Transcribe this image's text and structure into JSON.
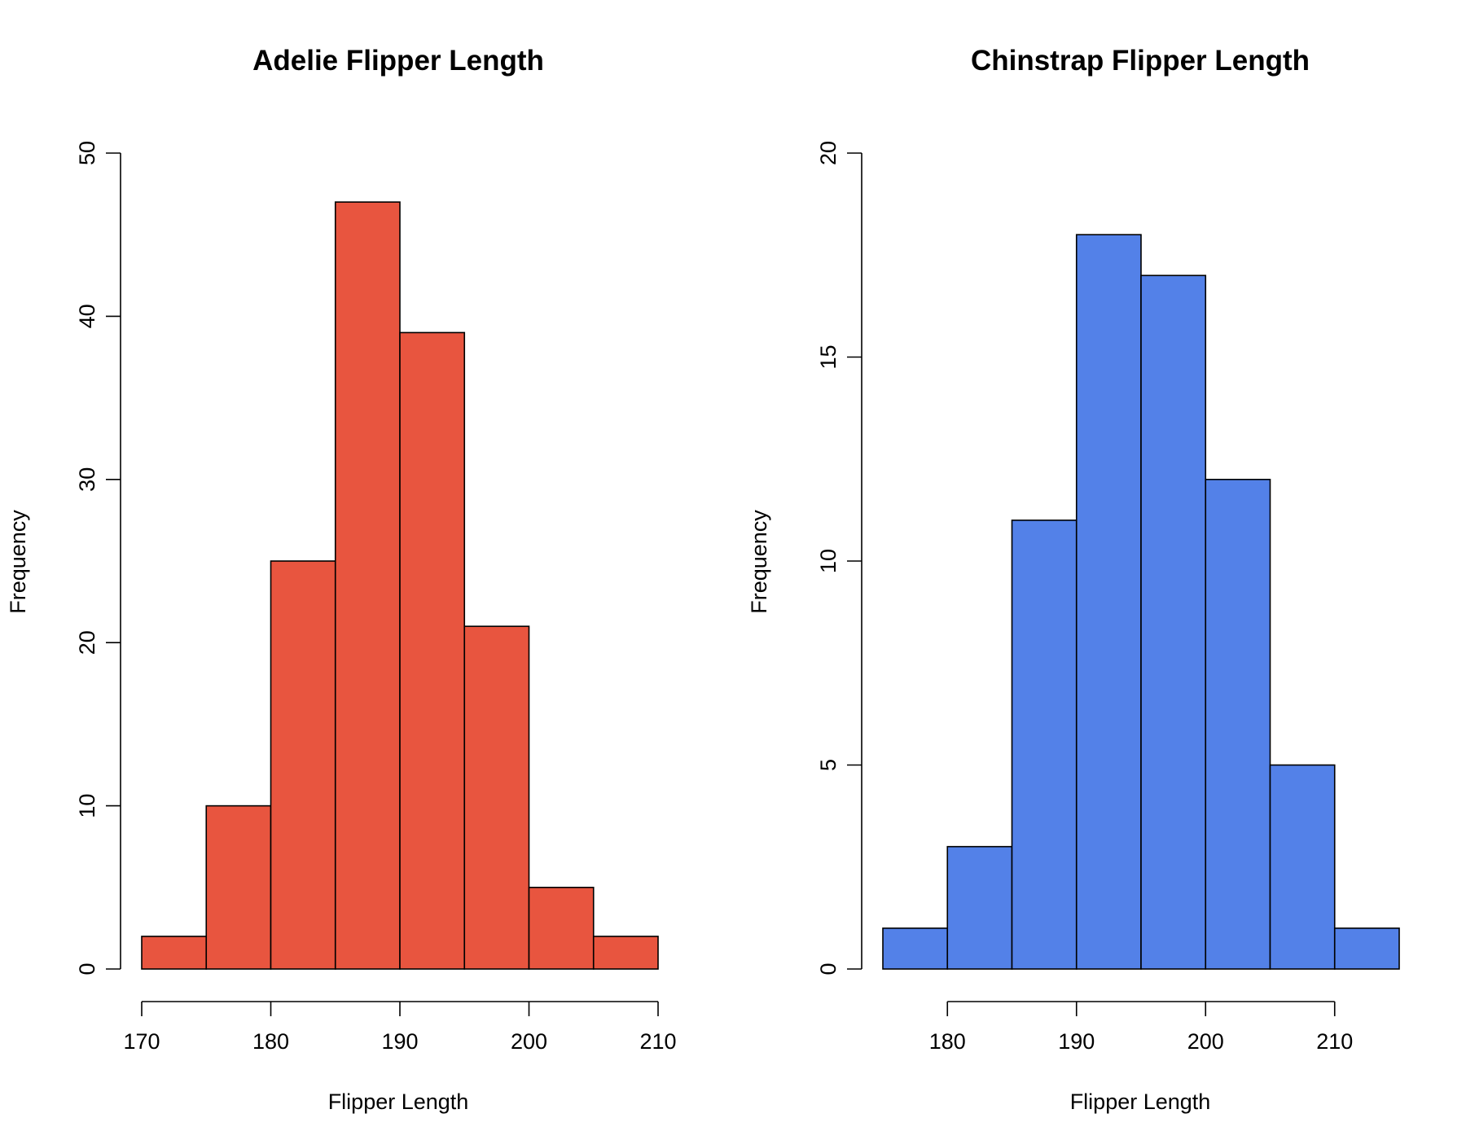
{
  "chart_data": [
    {
      "type": "bar",
      "title": "Adelie Flipper Length",
      "xlabel": "Flipper Length",
      "ylabel": "Frequency",
      "bin_edges": [
        170,
        175,
        180,
        185,
        190,
        195,
        200,
        205,
        210
      ],
      "values": [
        2,
        10,
        25,
        47,
        39,
        21,
        5,
        2
      ],
      "xticks": [
        170,
        180,
        190,
        200,
        210
      ],
      "xlim": [
        170,
        210
      ],
      "yticks": [
        0,
        10,
        20,
        30,
        40,
        50
      ],
      "ylim": [
        0,
        50
      ],
      "color": "#E8553F",
      "grid": false,
      "legend": "none"
    },
    {
      "type": "bar",
      "title": "Chinstrap Flipper Length",
      "xlabel": "Flipper Length",
      "ylabel": "Frequency",
      "bin_edges": [
        175,
        180,
        185,
        190,
        195,
        200,
        205,
        210,
        215
      ],
      "values": [
        1,
        3,
        11,
        18,
        17,
        12,
        5,
        1
      ],
      "xticks": [
        180,
        190,
        200,
        210
      ],
      "xlim": [
        175,
        215
      ],
      "yticks": [
        0,
        5,
        10,
        15,
        20
      ],
      "ylim": [
        0,
        20
      ],
      "color": "#5381E8",
      "grid": false,
      "legend": "none"
    }
  ]
}
